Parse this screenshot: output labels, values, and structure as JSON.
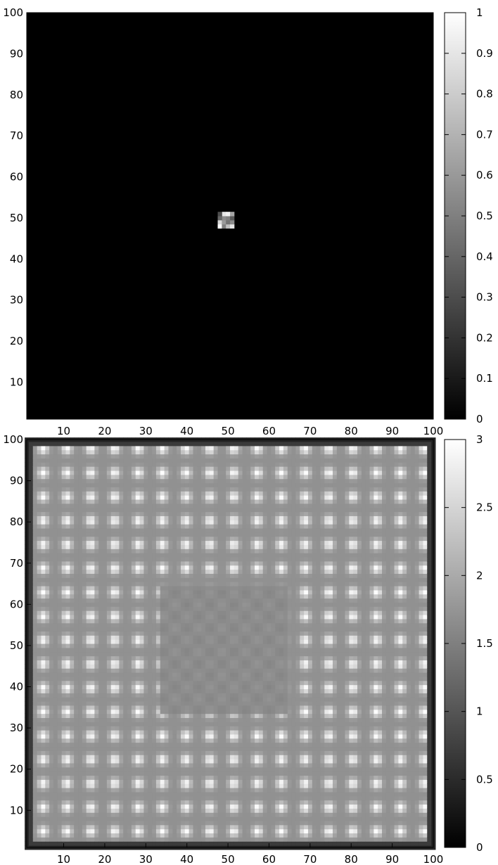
{
  "chart_data": [
    {
      "type": "heatmap",
      "title": "",
      "xlabel": "",
      "ylabel": "",
      "xlim": [
        1,
        100
      ],
      "ylim": [
        1,
        100
      ],
      "x_ticks": [
        "10",
        "20",
        "30",
        "40",
        "50",
        "60",
        "70",
        "80",
        "90",
        "100"
      ],
      "x_tick_values": [
        10,
        20,
        30,
        40,
        50,
        60,
        70,
        80,
        90,
        100
      ],
      "y_ticks": [
        "10",
        "20",
        "30",
        "40",
        "50",
        "60",
        "70",
        "80",
        "90",
        "100"
      ],
      "y_tick_values": [
        10,
        20,
        30,
        40,
        50,
        60,
        70,
        80,
        90,
        100
      ],
      "colorbar": {
        "min": 0,
        "max": 1,
        "ticks": [
          "0",
          "0.1",
          "0.2",
          "0.3",
          "0.4",
          "0.5",
          "0.6",
          "0.7",
          "0.8",
          "0.9",
          "1"
        ],
        "tick_values": [
          0,
          0.1,
          0.2,
          0.3,
          0.4,
          0.5,
          0.6,
          0.7,
          0.8,
          0.9,
          1
        ]
      },
      "colormap": "gray",
      "background_value": 0,
      "grid": false,
      "peak_cells": [
        {
          "x": 48,
          "y": 48,
          "value": 1.0
        },
        {
          "x": 48,
          "y": 49,
          "value": 0.85
        },
        {
          "x": 49,
          "y": 48,
          "value": 0.5
        },
        {
          "x": 49,
          "y": 49,
          "value": 0.6
        },
        {
          "x": 49,
          "y": 50,
          "value": 0.55
        },
        {
          "x": 49,
          "y": 51,
          "value": 0.9
        },
        {
          "x": 50,
          "y": 48,
          "value": 0.75
        },
        {
          "x": 50,
          "y": 49,
          "value": 0.45
        },
        {
          "x": 50,
          "y": 50,
          "value": 0.5
        },
        {
          "x": 50,
          "y": 51,
          "value": 0.95
        },
        {
          "x": 51,
          "y": 48,
          "value": 0.9
        },
        {
          "x": 51,
          "y": 49,
          "value": 0.55
        },
        {
          "x": 51,
          "y": 50,
          "value": 0.35
        },
        {
          "x": 51,
          "y": 51,
          "value": 0.65
        },
        {
          "x": 48,
          "y": 50,
          "value": 0.4
        },
        {
          "x": 48,
          "y": 51,
          "value": 0.3
        }
      ]
    },
    {
      "type": "heatmap",
      "title": "",
      "xlabel": "",
      "ylabel": "",
      "xlim": [
        1,
        100
      ],
      "ylim": [
        1,
        100
      ],
      "x_ticks": [
        "10",
        "20",
        "30",
        "40",
        "50",
        "60",
        "70",
        "80",
        "90",
        "100"
      ],
      "x_tick_values": [
        10,
        20,
        30,
        40,
        50,
        60,
        70,
        80,
        90,
        100
      ],
      "y_ticks": [
        "10",
        "20",
        "30",
        "40",
        "50",
        "60",
        "70",
        "80",
        "90",
        "100"
      ],
      "y_tick_values": [
        10,
        20,
        30,
        40,
        50,
        60,
        70,
        80,
        90,
        100
      ],
      "colorbar": {
        "min": 0,
        "max": 3,
        "ticks": [
          "0",
          "0.5",
          "1",
          "1.5",
          "2",
          "2.5",
          "3"
        ],
        "tick_values": [
          0,
          0.5,
          1,
          1.5,
          2,
          2.5,
          3
        ]
      },
      "colormap": "gray",
      "grid": false,
      "pattern": {
        "interior_base_value": 1.7,
        "border_value": 0.7,
        "peak_value": 3.0,
        "peak_period": 5.8,
        "peak_first": 5,
        "central_plateau": {
          "x_range": [
            34,
            64
          ],
          "y_range": [
            34,
            64
          ],
          "value": 1.65
        }
      }
    }
  ]
}
